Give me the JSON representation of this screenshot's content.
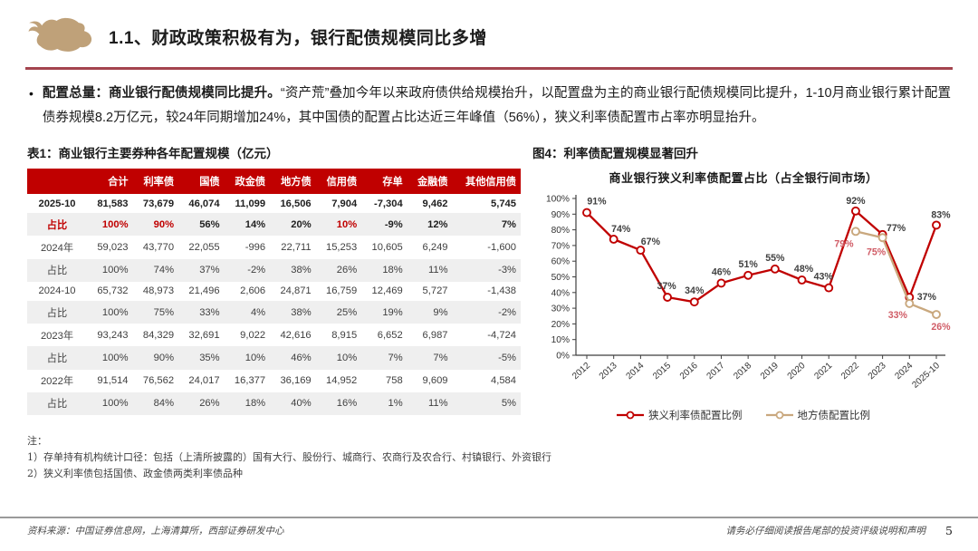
{
  "header": {
    "section_title": "1.1、财政政策积极有为，银行配债规模同比多增"
  },
  "summary": {
    "bullet": "•",
    "lead": "配置总量：商业银行配债规模同比提升。",
    "rest": "“资产荒”叠加今年以来政府债供给规模抬升，以配置盘为主的商业银行配债规模同比提升，1-10月商业银行累计配置债券规模8.2万亿元，较24年同期增加24%，其中国债的配置占比达近三年峰值（56%），狭义利率债配置市占率亦明显抬升。"
  },
  "table": {
    "caption": "表1：商业银行主要券种各年配置规模（亿元）",
    "headers": [
      "",
      "合计",
      "利率债",
      "国债",
      "政金债",
      "地方债",
      "信用债",
      "存单",
      "金融债",
      "其他信用债"
    ],
    "rows": [
      {
        "label": "2025-10",
        "bold": true,
        "shaded": false,
        "label_red": false,
        "red_cells": [],
        "cells": [
          "81,583",
          "73,679",
          "46,074",
          "11,099",
          "16,506",
          "7,904",
          "-7,304",
          "9,462",
          "5,745"
        ]
      },
      {
        "label": "占比",
        "bold": true,
        "shaded": true,
        "label_red": true,
        "red_cells": [
          0,
          1,
          5
        ],
        "cells": [
          "100%",
          "90%",
          "56%",
          "14%",
          "20%",
          "10%",
          "-9%",
          "12%",
          "7%"
        ]
      },
      {
        "label": "2024年",
        "bold": false,
        "shaded": false,
        "label_red": false,
        "red_cells": [],
        "cells": [
          "59,023",
          "43,770",
          "22,055",
          "-996",
          "22,711",
          "15,253",
          "10,605",
          "6,249",
          "-1,600"
        ]
      },
      {
        "label": "占比",
        "bold": false,
        "shaded": true,
        "label_red": false,
        "red_cells": [],
        "cells": [
          "100%",
          "74%",
          "37%",
          "-2%",
          "38%",
          "26%",
          "18%",
          "11%",
          "-3%"
        ]
      },
      {
        "label": "2024-10",
        "bold": false,
        "shaded": false,
        "label_red": false,
        "red_cells": [],
        "cells": [
          "65,732",
          "48,973",
          "21,496",
          "2,606",
          "24,871",
          "16,759",
          "12,469",
          "5,727",
          "-1,438"
        ]
      },
      {
        "label": "占比",
        "bold": false,
        "shaded": true,
        "label_red": false,
        "red_cells": [],
        "cells": [
          "100%",
          "75%",
          "33%",
          "4%",
          "38%",
          "25%",
          "19%",
          "9%",
          "-2%"
        ]
      },
      {
        "label": "2023年",
        "bold": false,
        "shaded": false,
        "label_red": false,
        "red_cells": [],
        "cells": [
          "93,243",
          "84,329",
          "32,691",
          "9,022",
          "42,616",
          "8,915",
          "6,652",
          "6,987",
          "-4,724"
        ]
      },
      {
        "label": "占比",
        "bold": false,
        "shaded": true,
        "label_red": false,
        "red_cells": [],
        "cells": [
          "100%",
          "90%",
          "35%",
          "10%",
          "46%",
          "10%",
          "7%",
          "7%",
          "-5%"
        ]
      },
      {
        "label": "2022年",
        "bold": false,
        "shaded": false,
        "label_red": false,
        "red_cells": [],
        "cells": [
          "91,514",
          "76,562",
          "24,017",
          "16,377",
          "36,169",
          "14,952",
          "758",
          "9,609",
          "4,584"
        ]
      },
      {
        "label": "占比",
        "bold": false,
        "shaded": true,
        "label_red": false,
        "red_cells": [],
        "cells": [
          "100%",
          "84%",
          "26%",
          "18%",
          "40%",
          "16%",
          "1%",
          "11%",
          "5%"
        ]
      }
    ]
  },
  "figure": {
    "caption": "图4：利率债配置规模显著回升"
  },
  "chart_data": {
    "type": "line",
    "title": "商业银行狭义利率债配置占比（占全银行间市场）",
    "x": [
      "2012",
      "2013",
      "2014",
      "2015",
      "2016",
      "2017",
      "2018",
      "2019",
      "2020",
      "2021",
      "2022",
      "2023",
      "2024",
      "2025-10"
    ],
    "series": [
      {
        "name": "狭义利率债配置比例",
        "color": "#C00000",
        "label_color": "#3F3F3F",
        "values": [
          91,
          74,
          67,
          37,
          34,
          46,
          51,
          55,
          48,
          43,
          92,
          77,
          37,
          83
        ]
      },
      {
        "name": "地方债配置比例",
        "color": "#C9A87E",
        "label_color": "#D05C66",
        "values": [
          null,
          null,
          null,
          null,
          null,
          null,
          null,
          null,
          null,
          null,
          79,
          75,
          33,
          26
        ]
      }
    ],
    "ylim": [
      0,
      100
    ],
    "y_tick_step": 10,
    "y_tick_suffix": "%",
    "grid": false,
    "legend_position": "bottom"
  },
  "notes": {
    "title": "注：",
    "items": [
      "1）存单持有机构统计口径：包括（上清所披露的）国有大行、股份行、城商行、农商行及农合行、村镇银行、外资银行",
      "2）狭义利率债包括国债、政金债两类利率债品种"
    ]
  },
  "footer": {
    "source": "资料来源：中国证券信息网，上海清算所，西部证券研发中心",
    "disclaimer": "请务必仔细阅读报告尾部的投资评级说明和声明",
    "page": "5"
  }
}
